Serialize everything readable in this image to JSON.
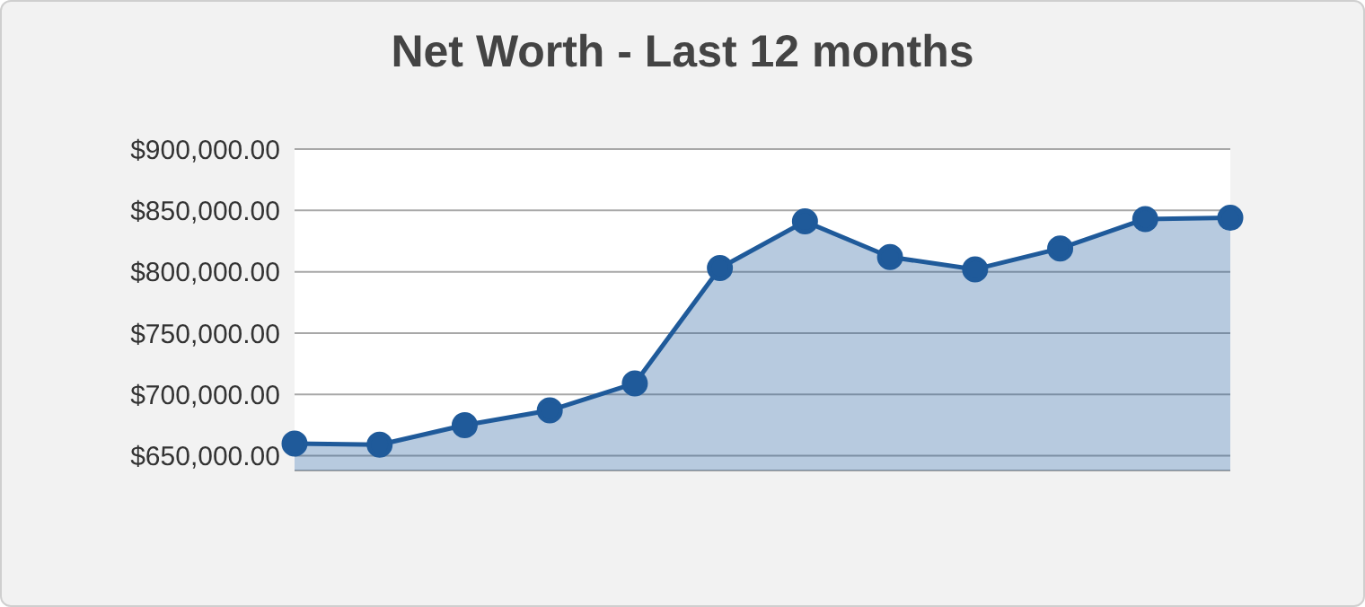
{
  "chart_data": {
    "type": "area",
    "title": "Net Worth - Last 12 months",
    "categories": [
      null,
      null,
      null,
      null,
      null,
      null,
      null,
      null,
      null,
      null,
      null,
      null
    ],
    "series": [
      {
        "color": "#1f5a9a",
        "values": [
          660000,
          659000,
          675000,
          687000,
          709000,
          803000,
          841000,
          812000,
          802000,
          819000,
          843000,
          844000
        ]
      }
    ],
    "ylim": [
      638000,
      900000
    ],
    "yticks": [
      {
        "value": 650000,
        "label": "$650,000.00"
      },
      {
        "value": 700000,
        "label": "$700,000.00"
      },
      {
        "value": 750000,
        "label": "$750,000.00"
      },
      {
        "value": 800000,
        "label": "$800,000.00"
      },
      {
        "value": 850000,
        "label": "$850,000.00"
      },
      {
        "value": 900000,
        "label": "$900,000.00"
      }
    ],
    "grid": "y",
    "marker": "circle",
    "tick_labels": "y"
  }
}
